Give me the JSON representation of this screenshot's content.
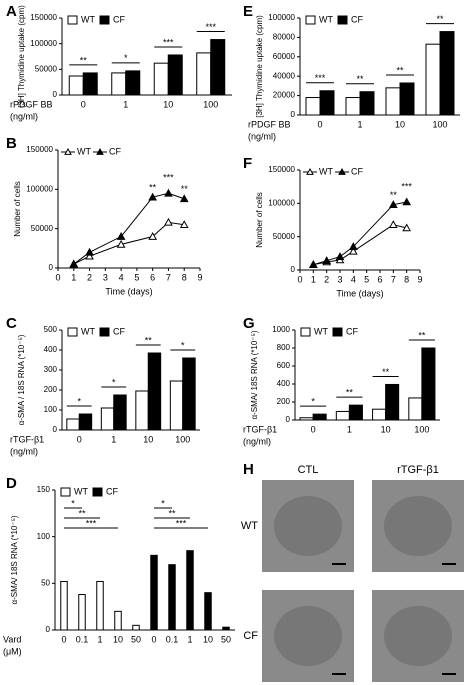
{
  "chart_data": [
    {
      "panel": "A",
      "type": "bar",
      "y_label": "[3H] Thymidine uptake (cpm)",
      "x_label": "rPDGF BB",
      "x_unit": "(ng/ml)",
      "categories": [
        "0",
        "1",
        "10",
        "100"
      ],
      "series": [
        {
          "name": "WT",
          "color": "#ffffff",
          "values": [
            37000,
            43000,
            62000,
            82000
          ]
        },
        {
          "name": "CF",
          "color": "#000000",
          "values": [
            43000,
            47000,
            78000,
            108000
          ]
        }
      ],
      "ylim": [
        0,
        150000
      ],
      "yticks": [
        0,
        50000,
        100000,
        150000
      ],
      "annotations": [
        "**",
        "*",
        "***",
        "***"
      ]
    },
    {
      "panel": "B",
      "type": "line",
      "y_label": "Number of cells",
      "x_label": "Time (days)",
      "series": [
        {
          "name": "WT",
          "color": "#ffffff",
          "x": [
            1,
            2,
            4,
            6,
            7,
            8
          ],
          "values": [
            5000,
            15000,
            30000,
            40000,
            58000,
            55000
          ]
        },
        {
          "name": "CF",
          "color": "#000000",
          "x": [
            1,
            2,
            4,
            6,
            7,
            8
          ],
          "values": [
            5000,
            20000,
            40000,
            90000,
            95000,
            88000
          ]
        }
      ],
      "xlim": [
        0,
        9
      ],
      "xticks": [
        0,
        1,
        2,
        3,
        4,
        5,
        6,
        7,
        8,
        9
      ],
      "ylim": [
        0,
        150000
      ],
      "yticks": [
        0,
        50000,
        100000,
        150000
      ],
      "annotations": [
        "**",
        "***",
        "**"
      ]
    },
    {
      "panel": "C",
      "type": "bar",
      "y_label": "α-SMA / 18S RNA (*10⁻⁵)",
      "x_label": "rTGF-β1",
      "x_unit": "(ng/ml)",
      "categories": [
        "0",
        "1",
        "10",
        "100"
      ],
      "series": [
        {
          "name": "WT",
          "color": "#ffffff",
          "values": [
            55,
            110,
            195,
            245
          ]
        },
        {
          "name": "CF",
          "color": "#000000",
          "values": [
            80,
            175,
            385,
            360
          ]
        }
      ],
      "ylim": [
        0,
        500
      ],
      "yticks": [
        0,
        100,
        200,
        300,
        400,
        500
      ],
      "annotations": [
        "*",
        "*",
        "**",
        "*"
      ]
    },
    {
      "panel": "D",
      "type": "bar",
      "y_label": "α-SMA/ 18S RNA (*10⁻⁵)",
      "x_label": "Vard",
      "x_unit": "(μM)",
      "categories": [
        "0",
        "0.1",
        "1",
        "10",
        "50",
        "0",
        "0.1",
        "1",
        "10",
        "50"
      ],
      "series": [
        {
          "name": "WT",
          "color": "#ffffff",
          "values": [
            52,
            38,
            52,
            20,
            5,
            null,
            null,
            null,
            null,
            null
          ]
        },
        {
          "name": "CF",
          "color": "#000000",
          "values": [
            null,
            null,
            null,
            null,
            null,
            80,
            70,
            85,
            40,
            3
          ]
        }
      ],
      "ylim": [
        0,
        150
      ],
      "yticks": [
        0,
        50,
        100,
        150
      ],
      "annotations": [
        "*",
        "**",
        "***",
        "*",
        "**",
        "***"
      ]
    },
    {
      "panel": "E",
      "type": "bar",
      "y_label": "[3H] Thymidine uptake (cpm)",
      "x_label": "rPDGF BB",
      "x_unit": "(ng/ml)",
      "categories": [
        "0",
        "1",
        "10",
        "100"
      ],
      "series": [
        {
          "name": "WT",
          "color": "#ffffff",
          "values": [
            18000,
            18000,
            28000,
            73000
          ]
        },
        {
          "name": "CF",
          "color": "#000000",
          "values": [
            25000,
            24000,
            33000,
            86000
          ]
        }
      ],
      "ylim": [
        0,
        100000
      ],
      "yticks": [
        0,
        20000,
        40000,
        60000,
        80000,
        100000
      ],
      "annotations": [
        "***",
        "**",
        "**",
        "**"
      ]
    },
    {
      "panel": "F",
      "type": "line",
      "y_label": "Number of cells",
      "x_label": "Time (days)",
      "series": [
        {
          "name": "WT",
          "color": "#ffffff",
          "x": [
            1,
            2,
            3,
            4,
            7,
            8
          ],
          "values": [
            8000,
            12000,
            15000,
            28000,
            68000,
            63000
          ]
        },
        {
          "name": "CF",
          "color": "#000000",
          "x": [
            1,
            2,
            3,
            4,
            7,
            8
          ],
          "values": [
            8000,
            14000,
            20000,
            35000,
            98000,
            102000
          ]
        }
      ],
      "xlim": [
        0,
        9
      ],
      "xticks": [
        0,
        1,
        2,
        3,
        4,
        5,
        6,
        7,
        8,
        9
      ],
      "ylim": [
        0,
        150000
      ],
      "yticks": [
        0,
        50000,
        100000,
        150000
      ],
      "annotations": [
        "**",
        "***"
      ]
    },
    {
      "panel": "G",
      "type": "bar",
      "y_label": "α-SMA/ 18S RNA (*10⁻⁵)",
      "x_label": "rTGF-β1",
      "x_unit": "(ng/ml)",
      "categories": [
        "0",
        "1",
        "10",
        "100"
      ],
      "series": [
        {
          "name": "WT",
          "color": "#ffffff",
          "values": [
            25,
            95,
            120,
            245
          ]
        },
        {
          "name": "CF",
          "color": "#000000",
          "values": [
            65,
            165,
            395,
            800
          ]
        }
      ],
      "ylim": [
        0,
        1000
      ],
      "yticks": [
        0,
        200,
        400,
        600,
        800,
        1000
      ],
      "annotations": [
        "*",
        "**",
        "**",
        "**"
      ]
    }
  ],
  "images": {
    "panel": "H",
    "columns": [
      "CTL",
      "rTGF-β1"
    ],
    "rows": [
      "WT",
      "CF"
    ]
  }
}
